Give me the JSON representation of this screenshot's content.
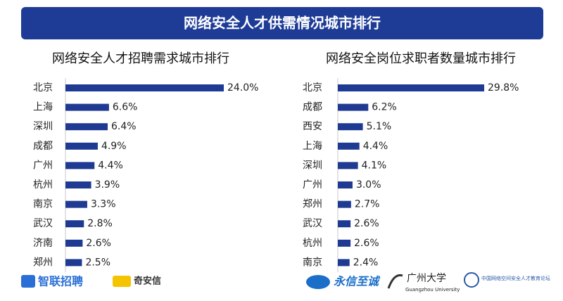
{
  "banner": {
    "title": "网络安全人才供需情况城市排行"
  },
  "chart_data": [
    {
      "type": "bar",
      "orientation": "horizontal",
      "title": "网络安全人才招聘需求城市排行",
      "categories": [
        "北京",
        "上海",
        "深圳",
        "成都",
        "广州",
        "杭州",
        "南京",
        "武汉",
        "济南",
        "郑州"
      ],
      "values": [
        24.0,
        6.6,
        6.4,
        4.9,
        4.4,
        3.9,
        3.3,
        2.8,
        2.6,
        2.5
      ],
      "value_labels": [
        "24.0%",
        "6.6%",
        "6.4%",
        "4.9%",
        "4.4%",
        "3.9%",
        "3.3%",
        "2.8%",
        "2.6%",
        "2.5%"
      ],
      "color": "#1f3a93"
    },
    {
      "type": "bar",
      "orientation": "horizontal",
      "title": "网络安全岗位求职者数量城市排行",
      "categories": [
        "北京",
        "成都",
        "西安",
        "上海",
        "深圳",
        "广州",
        "郑州",
        "武汉",
        "杭州",
        "南京"
      ],
      "values": [
        29.8,
        6.2,
        5.1,
        4.4,
        4.1,
        3.0,
        2.7,
        2.6,
        2.6,
        2.4
      ],
      "value_labels": [
        "29.8%",
        "6.2%",
        "5.1%",
        "4.4%",
        "4.1%",
        "3.0%",
        "2.7%",
        "2.6%",
        "2.6%",
        "2.4%"
      ],
      "color": "#1f3a93"
    }
  ],
  "logos": [
    "智联招聘",
    "奇安信",
    "永信至诚",
    "广州大学",
    "Guangzhou University",
    "中国网络空间安全人才教育论坛"
  ]
}
